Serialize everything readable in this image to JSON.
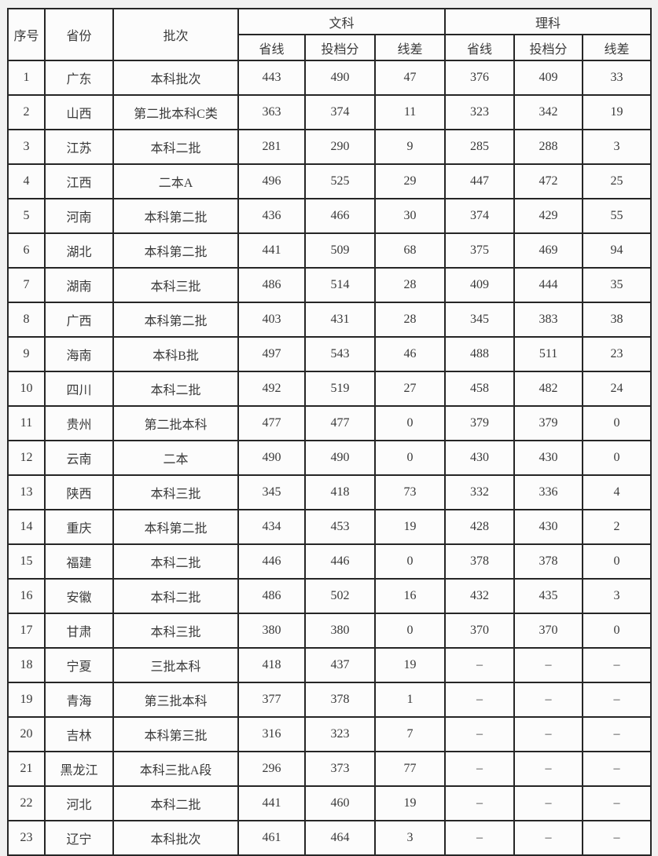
{
  "colors": {
    "page_background": "#f1f1f1",
    "cell_background": "#fcfcfc",
    "border": "#262626",
    "text": "#3a3a3a"
  },
  "table": {
    "headers": {
      "index": "序号",
      "province": "省份",
      "batch": "批次",
      "liberal_arts": "文科",
      "science": "理科",
      "sub": [
        "省线",
        "投档分",
        "线差"
      ]
    },
    "column_keys": [
      "index",
      "province",
      "batch",
      "wenke-shengxian",
      "wenke-toudangfen",
      "wenke-xiancha",
      "like-shengxian",
      "like-toudangfen",
      "like-xiancha"
    ],
    "rows": [
      [
        "1",
        "广东",
        "本科批次",
        "443",
        "490",
        "47",
        "376",
        "409",
        "33"
      ],
      [
        "2",
        "山西",
        "第二批本科C类",
        "363",
        "374",
        "11",
        "323",
        "342",
        "19"
      ],
      [
        "3",
        "江苏",
        "本科二批",
        "281",
        "290",
        "9",
        "285",
        "288",
        "3"
      ],
      [
        "4",
        "江西",
        "二本A",
        "496",
        "525",
        "29",
        "447",
        "472",
        "25"
      ],
      [
        "5",
        "河南",
        "本科第二批",
        "436",
        "466",
        "30",
        "374",
        "429",
        "55"
      ],
      [
        "6",
        "湖北",
        "本科第二批",
        "441",
        "509",
        "68",
        "375",
        "469",
        "94"
      ],
      [
        "7",
        "湖南",
        "本科三批",
        "486",
        "514",
        "28",
        "409",
        "444",
        "35"
      ],
      [
        "8",
        "广西",
        "本科第二批",
        "403",
        "431",
        "28",
        "345",
        "383",
        "38"
      ],
      [
        "9",
        "海南",
        "本科B批",
        "497",
        "543",
        "46",
        "488",
        "511",
        "23"
      ],
      [
        "10",
        "四川",
        "本科二批",
        "492",
        "519",
        "27",
        "458",
        "482",
        "24"
      ],
      [
        "11",
        "贵州",
        "第二批本科",
        "477",
        "477",
        "0",
        "379",
        "379",
        "0"
      ],
      [
        "12",
        "云南",
        "二本",
        "490",
        "490",
        "0",
        "430",
        "430",
        "0"
      ],
      [
        "13",
        "陕西",
        "本科三批",
        "345",
        "418",
        "73",
        "332",
        "336",
        "4"
      ],
      [
        "14",
        "重庆",
        "本科第二批",
        "434",
        "453",
        "19",
        "428",
        "430",
        "2"
      ],
      [
        "15",
        "福建",
        "本科二批",
        "446",
        "446",
        "0",
        "378",
        "378",
        "0"
      ],
      [
        "16",
        "安徽",
        "本科二批",
        "486",
        "502",
        "16",
        "432",
        "435",
        "3"
      ],
      [
        "17",
        "甘肃",
        "本科三批",
        "380",
        "380",
        "0",
        "370",
        "370",
        "0"
      ],
      [
        "18",
        "宁夏",
        "三批本科",
        "418",
        "437",
        "19",
        "–",
        "–",
        "–"
      ],
      [
        "19",
        "青海",
        "第三批本科",
        "377",
        "378",
        "1",
        "–",
        "–",
        "–"
      ],
      [
        "20",
        "吉林",
        "本科第三批",
        "316",
        "323",
        "7",
        "–",
        "–",
        "–"
      ],
      [
        "21",
        "黑龙江",
        "本科三批A段",
        "296",
        "373",
        "77",
        "–",
        "–",
        "–"
      ],
      [
        "22",
        "河北",
        "本科二批",
        "441",
        "460",
        "19",
        "–",
        "–",
        "–"
      ],
      [
        "23",
        "辽宁",
        "本科批次",
        "461",
        "464",
        "3",
        "–",
        "–",
        "–"
      ]
    ]
  }
}
